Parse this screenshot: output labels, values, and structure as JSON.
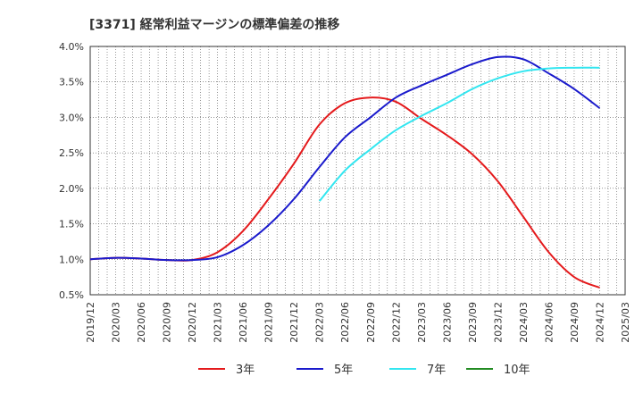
{
  "chart_data": {
    "type": "line",
    "title": "[3371]  経常利益マージンの標準偏差の推移",
    "xlabel": "",
    "ylabel": "",
    "x_ticks": [
      "2019/12",
      "2020/03",
      "2020/06",
      "2020/09",
      "2020/12",
      "2021/03",
      "2021/06",
      "2021/09",
      "2021/12",
      "2022/03",
      "2022/06",
      "2022/09",
      "2022/12",
      "2023/03",
      "2023/06",
      "2023/09",
      "2023/12",
      "2024/03",
      "2024/06",
      "2024/09",
      "2024/12",
      "2025/03"
    ],
    "y_ticks": [
      "0.5%",
      "1.0%",
      "1.5%",
      "2.0%",
      "2.5%",
      "3.0%",
      "3.5%",
      "4.0%"
    ],
    "ylim": [
      0.5,
      4.0
    ],
    "grid": true,
    "legend_position": "bottom",
    "series": [
      {
        "name": "3年",
        "color": "#e41a1c",
        "points": [
          [
            "2019/12",
            1.0
          ],
          [
            "2020/03",
            1.02
          ],
          [
            "2020/06",
            1.01
          ],
          [
            "2020/09",
            0.99
          ],
          [
            "2020/12",
            0.99
          ],
          [
            "2021/03",
            1.1
          ],
          [
            "2021/06",
            1.4
          ],
          [
            "2021/09",
            1.85
          ],
          [
            "2021/12",
            2.35
          ],
          [
            "2022/03",
            2.9
          ],
          [
            "2022/06",
            3.2
          ],
          [
            "2022/09",
            3.28
          ],
          [
            "2022/12",
            3.22
          ],
          [
            "2023/03",
            2.98
          ],
          [
            "2023/06",
            2.75
          ],
          [
            "2023/09",
            2.48
          ],
          [
            "2023/12",
            2.1
          ],
          [
            "2024/03",
            1.6
          ],
          [
            "2024/06",
            1.1
          ],
          [
            "2024/09",
            0.75
          ],
          [
            "2024/12",
            0.6
          ]
        ]
      },
      {
        "name": "5年",
        "color": "#1a1acc",
        "points": [
          [
            "2019/12",
            1.0
          ],
          [
            "2020/03",
            1.02
          ],
          [
            "2020/06",
            1.01
          ],
          [
            "2020/09",
            0.99
          ],
          [
            "2020/12",
            0.99
          ],
          [
            "2021/03",
            1.03
          ],
          [
            "2021/06",
            1.2
          ],
          [
            "2021/09",
            1.48
          ],
          [
            "2021/12",
            1.85
          ],
          [
            "2022/03",
            2.3
          ],
          [
            "2022/06",
            2.72
          ],
          [
            "2022/09",
            3.0
          ],
          [
            "2022/12",
            3.28
          ],
          [
            "2023/03",
            3.45
          ],
          [
            "2023/06",
            3.6
          ],
          [
            "2023/09",
            3.75
          ],
          [
            "2023/12",
            3.85
          ],
          [
            "2024/03",
            3.82
          ],
          [
            "2024/06",
            3.62
          ],
          [
            "2024/09",
            3.4
          ],
          [
            "2024/12",
            3.13
          ]
        ]
      },
      {
        "name": "7年",
        "color": "#33e6f0",
        "points": [
          [
            "2022/03",
            1.82
          ],
          [
            "2022/06",
            2.25
          ],
          [
            "2022/09",
            2.55
          ],
          [
            "2022/12",
            2.82
          ],
          [
            "2023/03",
            3.02
          ],
          [
            "2023/06",
            3.2
          ],
          [
            "2023/09",
            3.4
          ],
          [
            "2023/12",
            3.55
          ],
          [
            "2024/03",
            3.65
          ],
          [
            "2024/06",
            3.69
          ],
          [
            "2024/09",
            3.7
          ],
          [
            "2024/12",
            3.7
          ]
        ]
      },
      {
        "name": "10年",
        "color": "#228b22",
        "points": []
      }
    ]
  }
}
